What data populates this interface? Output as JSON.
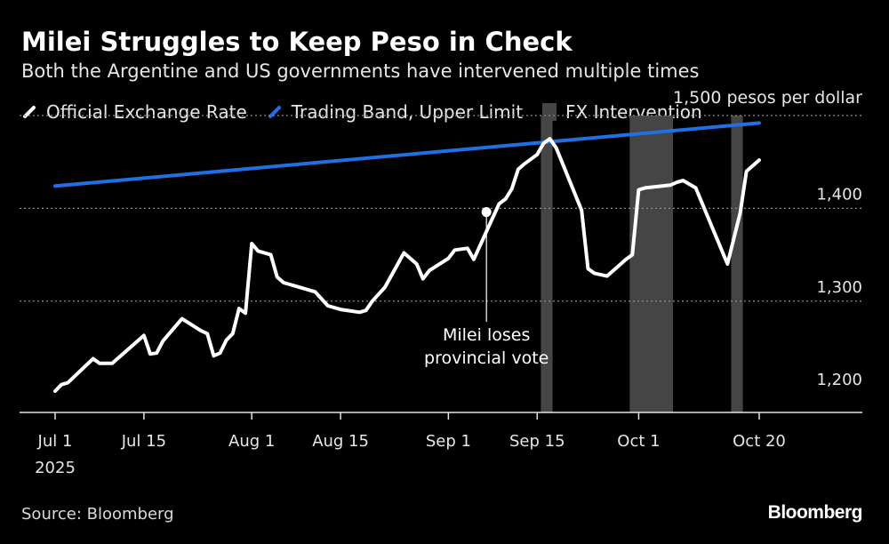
{
  "chart_data": {
    "type": "line",
    "title": "Milei Struggles to Keep Peso in Check",
    "subtitle": "Both the Argentine and US governments have intervened multiple times",
    "y_unit_label": "1,500 pesos per dollar",
    "ylim": [
      1180,
      1500
    ],
    "yticks": [
      1200,
      1300,
      1400
    ],
    "ytick_labels": [
      "1,200",
      "1,300",
      "1,400"
    ],
    "gridlines": [
      1300,
      1400,
      1500
    ],
    "xlim": [
      "2025-07-01",
      "2025-10-20"
    ],
    "xticks": [
      {
        "date": "2025-07-01",
        "label": "Jul 1",
        "sublabel": "2025"
      },
      {
        "date": "2025-07-15",
        "label": "Jul 15"
      },
      {
        "date": "2025-08-01",
        "label": "Aug 1"
      },
      {
        "date": "2025-08-15",
        "label": "Aug 15"
      },
      {
        "date": "2025-09-01",
        "label": "Sep 1"
      },
      {
        "date": "2025-09-15",
        "label": "Sep 15"
      },
      {
        "date": "2025-10-01",
        "label": "Oct 1"
      },
      {
        "date": "2025-10-20",
        "label": "Oct 20"
      }
    ],
    "legend": [
      {
        "name": "Official Exchange Rate",
        "color": "#ffffff",
        "shape": "line"
      },
      {
        "name": "Trading Band, Upper Limit",
        "color": "#1f6fe5",
        "shape": "line"
      },
      {
        "name": "FX Intervention",
        "color": "#444444",
        "shape": "box"
      }
    ],
    "interventions": [
      {
        "start": "2025-09-16",
        "end": "2025-09-17"
      },
      {
        "start": "2025-09-30",
        "end": "2025-10-06"
      },
      {
        "start": "2025-10-16",
        "end": "2025-10-17"
      }
    ],
    "series": [
      {
        "name": "Official Exchange Rate",
        "color": "#ffffff",
        "points": [
          [
            "2025-07-01",
            1203
          ],
          [
            "2025-07-02",
            1210
          ],
          [
            "2025-07-03",
            1212
          ],
          [
            "2025-07-07",
            1238
          ],
          [
            "2025-07-08",
            1233
          ],
          [
            "2025-07-10",
            1233
          ],
          [
            "2025-07-14",
            1257
          ],
          [
            "2025-07-15",
            1263
          ],
          [
            "2025-07-16",
            1243
          ],
          [
            "2025-07-17",
            1244
          ],
          [
            "2025-07-18",
            1257
          ],
          [
            "2025-07-21",
            1281
          ],
          [
            "2025-07-24",
            1268
          ],
          [
            "2025-07-25",
            1265
          ],
          [
            "2025-07-26",
            1241
          ],
          [
            "2025-07-27",
            1244
          ],
          [
            "2025-07-28",
            1258
          ],
          [
            "2025-07-29",
            1265
          ],
          [
            "2025-07-30",
            1292
          ],
          [
            "2025-07-31",
            1287
          ],
          [
            "2025-08-01",
            1362
          ],
          [
            "2025-08-02",
            1354
          ],
          [
            "2025-08-04",
            1350
          ],
          [
            "2025-08-05",
            1326
          ],
          [
            "2025-08-06",
            1320
          ],
          [
            "2025-08-07",
            1318
          ],
          [
            "2025-08-08",
            1316
          ],
          [
            "2025-08-11",
            1310
          ],
          [
            "2025-08-13",
            1295
          ],
          [
            "2025-08-15",
            1291
          ],
          [
            "2025-08-18",
            1288
          ],
          [
            "2025-08-19",
            1290
          ],
          [
            "2025-08-20",
            1300
          ],
          [
            "2025-08-22",
            1315
          ],
          [
            "2025-08-25",
            1352
          ],
          [
            "2025-08-27",
            1340
          ],
          [
            "2025-08-28",
            1324
          ],
          [
            "2025-08-29",
            1333
          ],
          [
            "2025-09-01",
            1346
          ],
          [
            "2025-09-02",
            1355
          ],
          [
            "2025-09-04",
            1357
          ],
          [
            "2025-09-05",
            1345
          ],
          [
            "2025-09-08",
            1390
          ],
          [
            "2025-09-09",
            1405
          ],
          [
            "2025-09-10",
            1410
          ],
          [
            "2025-09-11",
            1421
          ],
          [
            "2025-09-12",
            1442
          ],
          [
            "2025-09-13",
            1448
          ],
          [
            "2025-09-15",
            1458
          ],
          [
            "2025-09-16",
            1470
          ],
          [
            "2025-09-17",
            1475
          ],
          [
            "2025-09-18",
            1465
          ],
          [
            "2025-09-22",
            1398
          ],
          [
            "2025-09-23",
            1335
          ],
          [
            "2025-09-24",
            1330
          ],
          [
            "2025-09-26",
            1327
          ],
          [
            "2025-09-29",
            1345
          ],
          [
            "2025-09-30",
            1350
          ],
          [
            "2025-10-01",
            1420
          ],
          [
            "2025-10-02",
            1422
          ],
          [
            "2025-10-06",
            1425
          ],
          [
            "2025-10-07",
            1428
          ],
          [
            "2025-10-08",
            1430
          ],
          [
            "2025-10-10",
            1422
          ],
          [
            "2025-10-15",
            1340
          ],
          [
            "2025-10-17",
            1395
          ],
          [
            "2025-10-18",
            1440
          ],
          [
            "2025-10-20",
            1452
          ]
        ]
      },
      {
        "name": "Trading Band, Upper Limit",
        "color": "#1f6fe5",
        "points": [
          [
            "2025-07-01",
            1424
          ],
          [
            "2025-10-20",
            1492
          ]
        ]
      }
    ],
    "annotations": [
      {
        "date": "2025-09-07",
        "value": 1396,
        "label_lines": [
          "Milei loses",
          "provincial vote"
        ]
      }
    ],
    "source": "Source: Bloomberg",
    "brand": "Bloomberg"
  }
}
